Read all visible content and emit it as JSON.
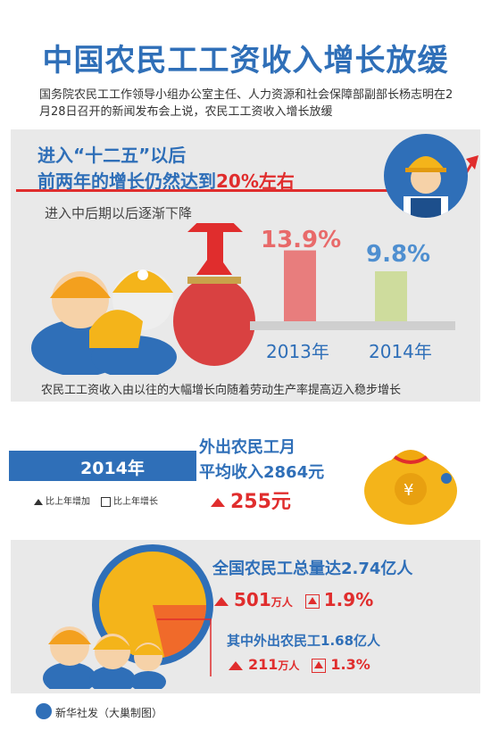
{
  "title": "中国农民工工资收入增长放缓",
  "intro": "国务院农民工工作领导小组办公室主任、人力资源和社会保障部副部长杨志明在2月28日召开的新闻发布会上说，农民工工资收入增长放缓",
  "section1": {
    "headline_line1": "进入“十二五”以后",
    "headline_line2_prefix": "前两年的增长仍然达到",
    "headline_line2_highlight": "20%左右",
    "subline": "进入中后期以后逐渐下降",
    "bars": [
      {
        "label": "2013年",
        "value_text": "13.9%",
        "value": 13.9
      },
      {
        "label": "2014年",
        "value_text": "9.8%",
        "value": 9.8
      }
    ],
    "footer": "农民工工资收入由以往的大幅增长向随着劳动生产率提高迈入稳步增长"
  },
  "section2": {
    "year_label": "2014年",
    "legend_increase": "比上年增加",
    "legend_growth": "比上年增长",
    "line1": "外出农民工月",
    "line2": "平均收入2864元",
    "increase_value": "255元"
  },
  "section3": {
    "total_label": "全国农民工总量达2.74亿人",
    "total_increase_num": "501",
    "total_increase_unit": "万人",
    "total_growth": "1.9%",
    "migrant_label": "其中外出农民工1.68亿人",
    "migrant_increase_num": "211",
    "migrant_increase_unit": "万人",
    "migrant_growth": "1.3%",
    "pie_share": 0.613
  },
  "credit": "新华社发（大巢制图）",
  "colors": {
    "blue": "#2f6fb8",
    "red": "#e02d2d",
    "yellow": "#f4b41a",
    "gray": "#e9e9e9"
  }
}
